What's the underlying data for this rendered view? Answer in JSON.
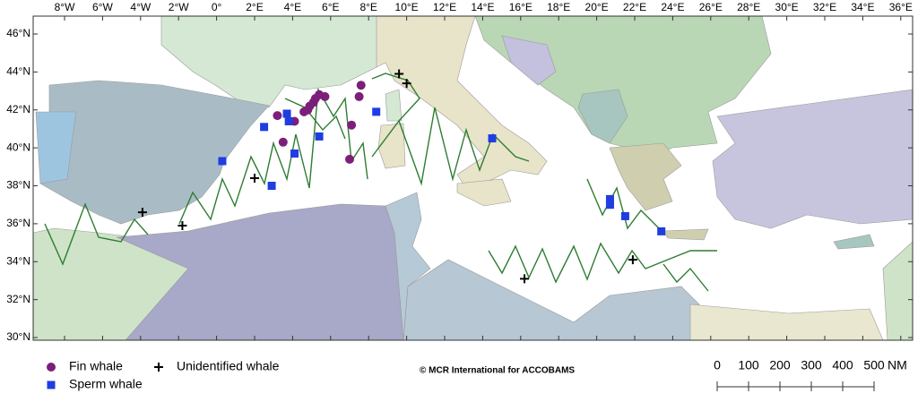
{
  "map": {
    "lon_ticks": [
      {
        "value": -8,
        "label": "8°W"
      },
      {
        "value": -6,
        "label": "6°W"
      },
      {
        "value": -4,
        "label": "4°W"
      },
      {
        "value": -2,
        "label": "2°W"
      },
      {
        "value": 0,
        "label": "0°"
      },
      {
        "value": 2,
        "label": "2°E"
      },
      {
        "value": 4,
        "label": "4°E"
      },
      {
        "value": 6,
        "label": "6°E"
      },
      {
        "value": 8,
        "label": "8°E"
      },
      {
        "value": 10,
        "label": "10°E"
      },
      {
        "value": 12,
        "label": "12°E"
      },
      {
        "value": 14,
        "label": "14°E"
      },
      {
        "value": 16,
        "label": "16°E"
      },
      {
        "value": 18,
        "label": "18°E"
      },
      {
        "value": 20,
        "label": "20°E"
      },
      {
        "value": 22,
        "label": "22°E"
      },
      {
        "value": 24,
        "label": "24°E"
      },
      {
        "value": 26,
        "label": "26°E"
      },
      {
        "value": 28,
        "label": "28°E"
      },
      {
        "value": 30,
        "label": "30°E"
      },
      {
        "value": 32,
        "label": "32°E"
      },
      {
        "value": 34,
        "label": "34°E"
      },
      {
        "value": 36,
        "label": "36°E"
      }
    ],
    "lat_ticks": [
      {
        "value": 46,
        "label": "46°N"
      },
      {
        "value": 44,
        "label": "44°N"
      },
      {
        "value": 42,
        "label": "42°N"
      },
      {
        "value": 40,
        "label": "40°N"
      },
      {
        "value": 38,
        "label": "38°N"
      },
      {
        "value": 36,
        "label": "36°N"
      },
      {
        "value": 34,
        "label": "34°N"
      },
      {
        "value": 32,
        "label": "32°N"
      },
      {
        "value": 30,
        "label": "30°N"
      }
    ],
    "layers": [
      {
        "name": "Fin whale",
        "shape": "circle",
        "color": "#7b1f7a",
        "points": [
          [
            3.2,
            41.7
          ],
          [
            3.5,
            40.3
          ],
          [
            4.1,
            41.4
          ],
          [
            4.6,
            41.9
          ],
          [
            4.8,
            42.0
          ],
          [
            4.9,
            42.2
          ],
          [
            5.1,
            42.4
          ],
          [
            5.2,
            42.6
          ],
          [
            5.4,
            42.8
          ],
          [
            5.7,
            42.7
          ],
          [
            7.5,
            42.7
          ],
          [
            7.6,
            43.3
          ],
          [
            7.1,
            41.2
          ],
          [
            7.0,
            39.4
          ]
        ]
      },
      {
        "name": "Sperm whale",
        "shape": "square",
        "color": "#1f3de0",
        "points": [
          [
            3.7,
            41.8
          ],
          [
            3.8,
            41.4
          ],
          [
            2.5,
            41.1
          ],
          [
            0.3,
            39.3
          ],
          [
            4.1,
            39.7
          ],
          [
            5.4,
            40.6
          ],
          [
            8.4,
            41.9
          ],
          [
            2.9,
            38.0
          ],
          [
            14.5,
            40.5
          ],
          [
            20.7,
            37.3
          ],
          [
            20.7,
            37.0
          ],
          [
            21.5,
            36.4
          ],
          [
            23.4,
            35.6
          ]
        ]
      },
      {
        "name": "Unidentified whale",
        "shape": "plus",
        "color": "#000000",
        "points": [
          [
            -3.9,
            36.6
          ],
          [
            -1.8,
            35.9
          ],
          [
            2.0,
            38.4
          ],
          [
            9.6,
            43.9
          ],
          [
            10.0,
            43.4
          ],
          [
            16.2,
            33.1
          ],
          [
            21.9,
            34.1
          ]
        ]
      }
    ],
    "copyright": "© MCR International for ACCOBAMS",
    "scale": {
      "ticks": [
        0,
        100,
        200,
        300,
        400,
        500
      ],
      "unit": "NM"
    }
  }
}
